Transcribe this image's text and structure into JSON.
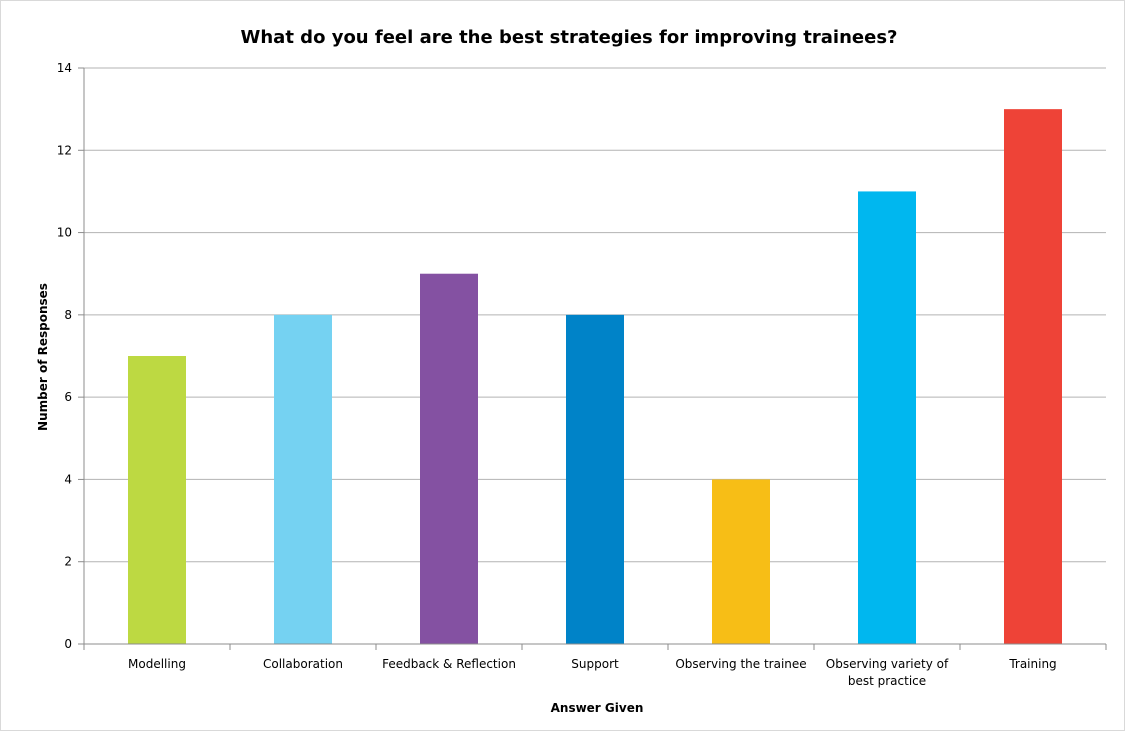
{
  "chart_data": {
    "type": "bar",
    "title": "What do you feel are the best strategies for improving trainees?",
    "xlabel": "Answer Given",
    "ylabel": "Number of Responses",
    "categories": [
      [
        "Modelling"
      ],
      [
        "Collaboration"
      ],
      [
        "Feedback & Reflection"
      ],
      [
        "Support"
      ],
      [
        "Observing the trainee"
      ],
      [
        "Observing variety of",
        "best practice"
      ],
      [
        "Training"
      ]
    ],
    "values": [
      7,
      8,
      9,
      8,
      4,
      11,
      13
    ],
    "colors": [
      "#bdd942",
      "#75d2f2",
      "#8451a2",
      "#0083c8",
      "#f7be16",
      "#00b7ef",
      "#ee4337"
    ],
    "ylim": [
      0,
      14
    ],
    "yticks": [
      0,
      2,
      4,
      6,
      8,
      10,
      12,
      14
    ],
    "grid": true,
    "legend": "none"
  }
}
